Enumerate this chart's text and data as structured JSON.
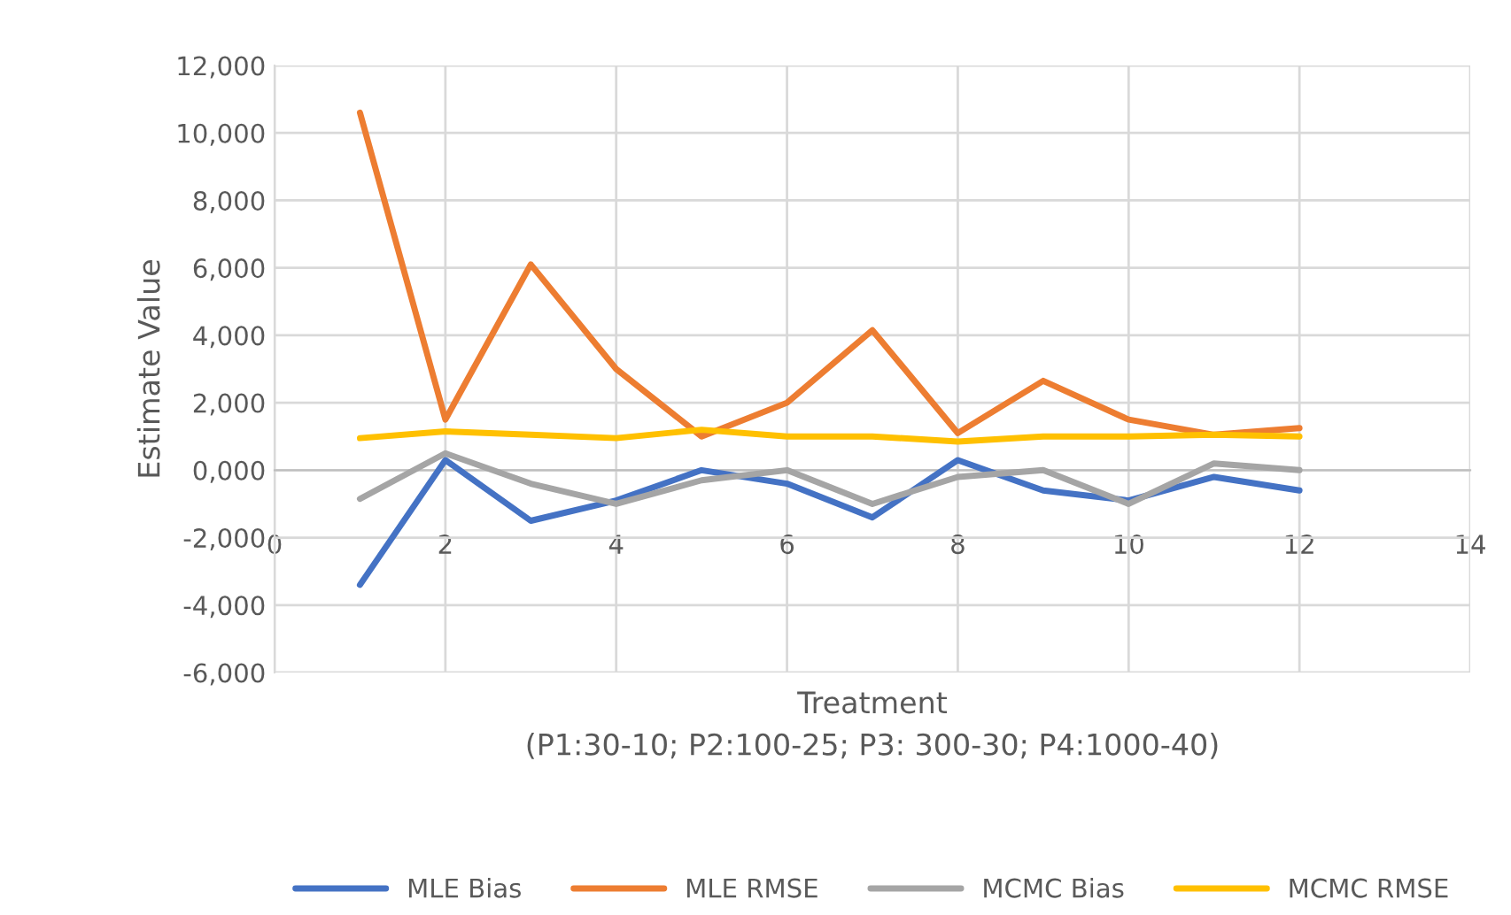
{
  "chart_data": {
    "type": "line",
    "xlabel": "Treatment\n(P1:30-10; P2:100-25; P3: 300-30; P4:1000-40)",
    "ylabel": "Estimate Value",
    "x": [
      1,
      2,
      3,
      4,
      5,
      6,
      7,
      8,
      9,
      10,
      11,
      12
    ],
    "series": [
      {
        "name": "MLE Bias",
        "color": "#4472c4",
        "values": [
          -3400,
          300,
          -1500,
          -900,
          0,
          -400,
          -1400,
          300,
          -600,
          -900,
          -200,
          -600
        ]
      },
      {
        "name": "MLE RMSE",
        "color": "#ed7d31",
        "values": [
          10600,
          1500,
          6100,
          3000,
          1000,
          2000,
          4150,
          1100,
          2650,
          1500,
          1050,
          1250
        ]
      },
      {
        "name": "MCMC Bias",
        "color": "#a5a5a5",
        "values": [
          -850,
          500,
          -400,
          -1000,
          -300,
          0,
          -1000,
          -200,
          0,
          -1000,
          200,
          0
        ]
      },
      {
        "name": "MCMC RMSE",
        "color": "#ffc000",
        "values": [
          950,
          1150,
          1050,
          950,
          1200,
          1000,
          1000,
          850,
          1000,
          1000,
          1050,
          1000
        ]
      }
    ],
    "xlim": [
      0,
      14
    ],
    "xticks": [
      0,
      2,
      4,
      6,
      8,
      10,
      12,
      14
    ],
    "ylim": [
      -6000,
      12000
    ],
    "yticks": [
      {
        "value": -6000,
        "label": "-6,000"
      },
      {
        "value": -4000,
        "label": "-4,000"
      },
      {
        "value": -2000,
        "label": "-2,000"
      },
      {
        "value": 0,
        "label": "0,000"
      },
      {
        "value": 2000,
        "label": "2,000"
      },
      {
        "value": 4000,
        "label": "4,000"
      },
      {
        "value": 6000,
        "label": "6,000"
      },
      {
        "value": 8000,
        "label": "8,000"
      },
      {
        "value": 10000,
        "label": "10,000"
      },
      {
        "value": 12000,
        "label": "12,000"
      }
    ],
    "grid": true,
    "legend": "bottom",
    "marker": "none",
    "line_style": "solid"
  }
}
